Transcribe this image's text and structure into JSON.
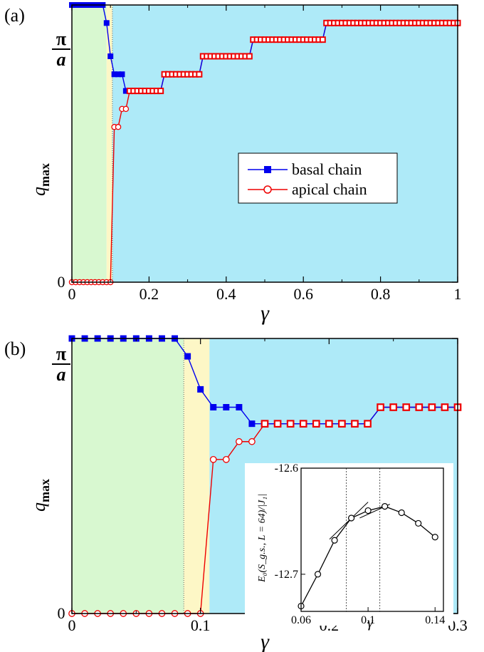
{
  "colors": {
    "green_region": "#d8f8d0",
    "yellow_region": "#fdf7c6",
    "blue_region": "#aeeaf8",
    "basal": "#0000ee",
    "apical": "#ee0000"
  },
  "chart_data": [
    {
      "type": "line",
      "panel_label": "(a)",
      "xlabel": "γ",
      "ylabel_main": "q",
      "ylabel_sub": "max",
      "xlim": [
        0,
        1
      ],
      "ylim": [
        0,
        1
      ],
      "x_ticks": [
        0,
        0.2,
        0.4,
        0.6,
        0.8,
        1
      ],
      "x_tick_labels": [
        "0",
        "0.2",
        "0.4",
        "0.6",
        "0.8",
        "1"
      ],
      "y_tick_labels": [
        "0",
        "π/a"
      ],
      "y_tick_top_num": "π",
      "y_tick_top_den": "a",
      "regions": [
        {
          "from": 0,
          "to": 0.09,
          "color": "green"
        },
        {
          "from": 0.09,
          "to": 0.105,
          "color": "yellow"
        },
        {
          "from": 0.105,
          "to": 1,
          "color": "blue"
        }
      ],
      "region_divider_x": 0.105,
      "legend": {
        "position": "center-right",
        "entries": [
          "basal chain",
          "apical chain"
        ]
      },
      "series": [
        {
          "name": "basal chain",
          "marker": "square",
          "x": [
            0,
            0.01,
            0.02,
            0.03,
            0.04,
            0.05,
            0.06,
            0.07,
            0.08,
            0.09,
            0.1,
            0.11,
            0.12,
            0.13,
            0.14
          ],
          "y": [
            1,
            1,
            1,
            1,
            1,
            1,
            1,
            1,
            1,
            0.935,
            0.815,
            0.75,
            0.75,
            0.75,
            0.69
          ]
        },
        {
          "name": "apical chain",
          "marker": "circle",
          "x": [
            0,
            0.01,
            0.02,
            0.03,
            0.04,
            0.05,
            0.06,
            0.07,
            0.08,
            0.09,
            0.1,
            0.11,
            0.12,
            0.13,
            0.14
          ],
          "y": [
            0,
            0,
            0,
            0,
            0,
            0,
            0,
            0,
            0,
            0,
            0,
            0.56,
            0.56,
            0.625,
            0.625
          ]
        }
      ],
      "shared_tail": {
        "start": 0.15,
        "end": 1,
        "step": 0.01,
        "levels": [
          {
            "from": 0.15,
            "to": 0.23,
            "y": 0.69
          },
          {
            "from": 0.24,
            "to": 0.33,
            "y": 0.75
          },
          {
            "from": 0.34,
            "to": 0.46,
            "y": 0.815
          },
          {
            "from": 0.47,
            "to": 0.65,
            "y": 0.875
          },
          {
            "from": 0.66,
            "to": 1,
            "y": 0.935
          }
        ]
      }
    },
    {
      "type": "line",
      "panel_label": "(b)",
      "xlabel": "γ",
      "ylabel_main": "q",
      "ylabel_sub": "max",
      "xlim": [
        0,
        0.3
      ],
      "ylim": [
        0,
        1
      ],
      "x_ticks": [
        0,
        0.1,
        0.2,
        0.3
      ],
      "x_tick_labels": [
        "0",
        "0.1",
        "0.2",
        "0.3"
      ],
      "y_tick_labels": [
        "0",
        "π/a"
      ],
      "y_tick_top_num": "π",
      "y_tick_top_den": "a",
      "regions": [
        {
          "from": 0,
          "to": 0.087,
          "color": "green"
        },
        {
          "from": 0.087,
          "to": 0.107,
          "color": "yellow"
        },
        {
          "from": 0.107,
          "to": 0.3,
          "color": "blue"
        }
      ],
      "region_divider_x": 0.087,
      "series": [
        {
          "name": "basal chain",
          "marker": "square",
          "x": [
            0,
            0.01,
            0.02,
            0.03,
            0.04,
            0.05,
            0.06,
            0.07,
            0.08,
            0.09,
            0.1,
            0.11,
            0.12,
            0.13,
            0.14
          ],
          "y": [
            1,
            1,
            1,
            1,
            1,
            1,
            1,
            1,
            1,
            0.935,
            0.815,
            0.75,
            0.75,
            0.75,
            0.69
          ]
        },
        {
          "name": "apical chain",
          "marker": "circle",
          "x": [
            0,
            0.01,
            0.02,
            0.03,
            0.04,
            0.05,
            0.06,
            0.07,
            0.08,
            0.09,
            0.1,
            0.11,
            0.12,
            0.13,
            0.14
          ],
          "y": [
            0,
            0,
            0,
            0,
            0,
            0,
            0,
            0,
            0,
            0,
            0,
            0.56,
            0.56,
            0.625,
            0.625
          ]
        }
      ],
      "shared_tail": {
        "start": 0.15,
        "end": 0.3,
        "step": 0.01,
        "levels": [
          {
            "from": 0.15,
            "to": 0.23,
            "y": 0.69
          },
          {
            "from": 0.24,
            "to": 0.3,
            "y": 0.75
          }
        ]
      },
      "inset": {
        "type": "line",
        "xlabel": "γ",
        "ylabel": "E₀(S_g.s., L = 64)/|J₁|",
        "xlim": [
          0.06,
          0.145
        ],
        "ylim": [
          -12.735,
          -12.6
        ],
        "x_ticks": [
          0.06,
          0.1,
          0.14
        ],
        "x_tick_labels": [
          "0.06",
          "0.1",
          "0.14"
        ],
        "y_ticks": [
          -12.6,
          -12.7
        ],
        "y_tick_labels": [
          "-12.6",
          "-12.7"
        ],
        "vertical_lines": [
          0.087,
          0.107
        ],
        "x": [
          0.06,
          0.07,
          0.08,
          0.09,
          0.1,
          0.11,
          0.12,
          0.13,
          0.14
        ],
        "y": [
          -12.73,
          -12.7,
          -12.668,
          -12.647,
          -12.64,
          -12.636,
          -12.642,
          -12.652,
          -12.665
        ],
        "tangents": [
          {
            "x": [
              0.077,
              0.1
            ],
            "y": [
              -12.667,
              -12.632
            ]
          },
          {
            "x": [
              0.095,
              0.113
            ],
            "y": [
              -12.647,
              -12.634
            ]
          }
        ]
      }
    }
  ]
}
